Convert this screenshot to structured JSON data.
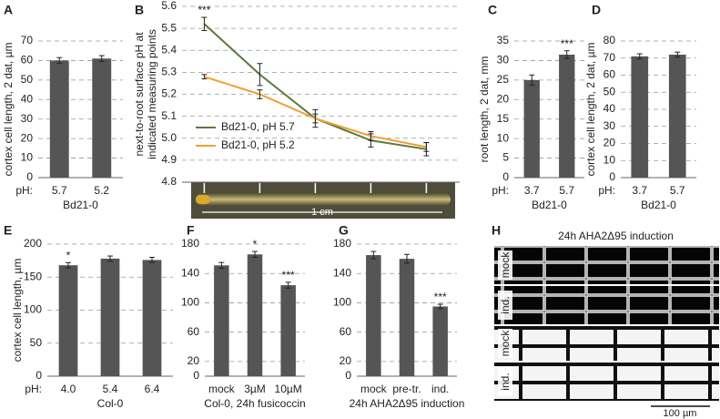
{
  "chart_data": [
    {
      "type": "bar",
      "label": "A",
      "ylabel": "cortex cell length, 2 dat, µm",
      "x_prefix": "pH:",
      "categories": [
        "5.7",
        "5.2"
      ],
      "values": [
        60,
        61
      ],
      "errors": [
        1.5,
        1.5
      ],
      "group_label": "Bd21-0",
      "ylim": [
        0,
        70
      ],
      "yticks": [
        0,
        10,
        20,
        30,
        40,
        50,
        60,
        70
      ],
      "color": "#555555",
      "grid": true
    },
    {
      "type": "line",
      "label": "B",
      "ylabel": [
        "next-to-root surface pH at",
        "indicated measuring points"
      ],
      "categories": [
        null,
        null,
        null,
        null,
        null
      ],
      "series": [
        {
          "name": "Bd21-0, pH 5.7",
          "color": "#5b7a3c",
          "values": [
            5.52,
            5.29,
            5.09,
            4.99,
            4.95
          ],
          "errors": [
            0.03,
            0.05,
            0.04,
            0.03,
            0.03
          ]
        },
        {
          "name": "Bd21-0, pH 5.2",
          "color": "#f0a033",
          "values": [
            5.28,
            5.2,
            5.09,
            5.01,
            4.96
          ],
          "errors": [
            0.01,
            0.02,
            0.02,
            0.02,
            0.02
          ]
        }
      ],
      "annotations": [
        {
          "series": 0,
          "index": 0,
          "text": "***"
        }
      ],
      "scale_label": "1 cm",
      "ylim": [
        4.8,
        5.6
      ],
      "yticks": [
        4.8,
        4.9,
        {
          "value": 5,
          "label": "5.0"
        },
        5.1,
        5.2,
        5.3,
        5.4,
        5.5,
        5.6
      ],
      "grid": true
    },
    {
      "type": "bar",
      "label": "C",
      "ylabel": "root length, 2 dat, mm",
      "x_prefix": "pH:",
      "categories": [
        "3.7",
        "5.7"
      ],
      "values": [
        25,
        31.5
      ],
      "errors": [
        1.3,
        1
      ],
      "annotations": [
        {
          "index": 1,
          "text": "***"
        }
      ],
      "group_label": "Bd21-0",
      "ylim": [
        0,
        35
      ],
      "yticks": [
        0,
        5,
        10,
        15,
        20,
        25,
        30,
        35
      ],
      "color": "#555555",
      "grid": true
    },
    {
      "type": "bar",
      "label": "D",
      "ylabel": "cortex cell length, 2 dat, µm",
      "x_prefix": "pH:",
      "categories": [
        "3.7",
        "5.7"
      ],
      "values": [
        71,
        72
      ],
      "errors": [
        1.5,
        1.5
      ],
      "group_label": "Bd21-0",
      "ylim": [
        0,
        80
      ],
      "yticks": [
        0,
        10,
        20,
        30,
        40,
        50,
        60,
        70,
        80
      ],
      "color": "#555555",
      "grid": true
    },
    {
      "type": "bar",
      "label": "E",
      "ylabel": "cortex cell length, µm",
      "x_prefix": "pH:",
      "categories": [
        "4.0",
        "5.4",
        "6.4"
      ],
      "values": [
        168,
        178,
        176
      ],
      "errors": [
        4,
        4,
        4
      ],
      "annotations": [
        {
          "index": 0,
          "text": "*"
        }
      ],
      "group_label": "Col-0",
      "ylim": [
        0,
        200
      ],
      "yticks": [
        0,
        50,
        100,
        150,
        200
      ],
      "color": "#555555",
      "grid": true
    },
    {
      "type": "bar",
      "label": "F",
      "categories": [
        "mock",
        "3µM",
        "10µM"
      ],
      "values": [
        151,
        166,
        124
      ],
      "errors": [
        4,
        4,
        4
      ],
      "annotations": [
        {
          "index": 1,
          "text": "*"
        },
        {
          "index": 2,
          "text": "***"
        }
      ],
      "group_label": "Col-0, 24h fusicoccin",
      "ylim": [
        0,
        180
      ],
      "yticks": [
        0,
        20,
        60,
        100,
        140,
        180
      ],
      "color": "#555555",
      "grid": true
    },
    {
      "type": "bar",
      "label": "G",
      "categories": [
        "mock",
        "pre-tr.",
        "ind."
      ],
      "values": [
        165,
        160,
        95
      ],
      "errors": [
        5,
        6,
        3
      ],
      "annotations": [
        {
          "index": 2,
          "text": "***"
        }
      ],
      "group_label": "24h AHA2Δ95 induction",
      "ylim": [
        0,
        180
      ],
      "yticks": [
        0,
        20,
        60,
        100,
        140,
        180
      ],
      "color": "#555555",
      "grid": true
    },
    {
      "type": "image",
      "label": "H",
      "title": "24h AHA2Δ95 induction",
      "row_labels": [
        "mock",
        "ind.",
        "mock",
        "ind."
      ],
      "scale_label": "100 µm"
    }
  ]
}
